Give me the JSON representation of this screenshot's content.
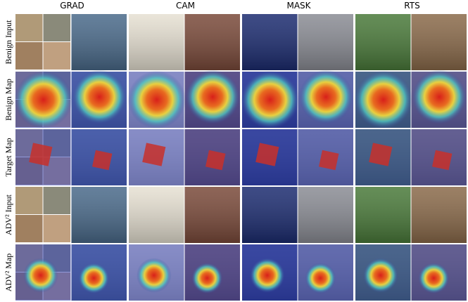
{
  "header": {
    "columns": [
      "GRAD",
      "CAM",
      "MASK",
      "RTS"
    ]
  },
  "rows": [
    "Benign Input",
    "Benign Map",
    "Target Map",
    "ADV² Input",
    "ADV² Map"
  ]
}
